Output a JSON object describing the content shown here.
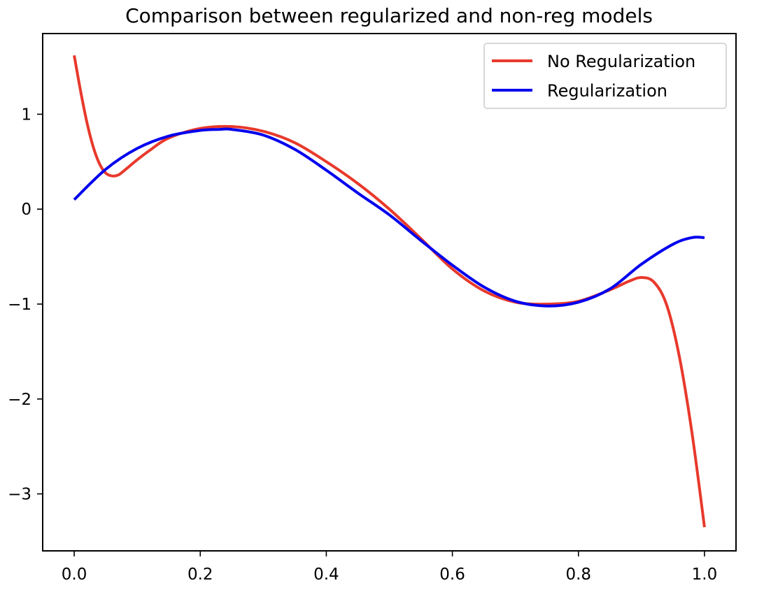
{
  "chart_data": {
    "type": "line",
    "title": "Comparison between regularized and non-reg models",
    "xlabel": "",
    "ylabel": "",
    "xlim": [
      -0.05,
      1.05
    ],
    "ylim": [
      -3.6,
      1.85
    ],
    "xticks": [
      0.0,
      0.2,
      0.4,
      0.6,
      0.8,
      1.0
    ],
    "xtick_labels": [
      "0.0",
      "0.2",
      "0.4",
      "0.6",
      "0.8",
      "1.0"
    ],
    "yticks": [
      1,
      0,
      -1,
      -2,
      -3
    ],
    "ytick_labels": [
      "1",
      "0",
      "−1",
      "−2",
      "−3"
    ],
    "grid": false,
    "legend_position": "upper right",
    "series": [
      {
        "name": "No Regularization",
        "color": "#e8392c",
        "x": [
          0.0,
          0.01,
          0.02,
          0.03,
          0.04,
          0.05,
          0.06,
          0.07,
          0.08,
          0.1,
          0.12,
          0.15,
          0.2,
          0.25,
          0.3,
          0.35,
          0.4,
          0.45,
          0.5,
          0.55,
          0.6,
          0.65,
          0.7,
          0.75,
          0.8,
          0.85,
          0.88,
          0.9,
          0.92,
          0.94,
          0.96,
          0.98,
          1.0
        ],
        "y": [
          1.62,
          1.25,
          0.92,
          0.66,
          0.48,
          0.38,
          0.35,
          0.36,
          0.41,
          0.52,
          0.62,
          0.75,
          0.85,
          0.87,
          0.82,
          0.7,
          0.5,
          0.27,
          0.0,
          -0.31,
          -0.63,
          -0.86,
          -0.98,
          -1.0,
          -0.97,
          -0.85,
          -0.76,
          -0.72,
          -0.77,
          -1.01,
          -1.55,
          -2.35,
          -3.35
        ]
      },
      {
        "name": "Regularization",
        "color": "#0000ee",
        "x": [
          0.0,
          0.05,
          0.1,
          0.15,
          0.2,
          0.23,
          0.25,
          0.3,
          0.35,
          0.4,
          0.45,
          0.5,
          0.55,
          0.6,
          0.65,
          0.7,
          0.75,
          0.8,
          0.85,
          0.9,
          0.95,
          0.98,
          1.0
        ],
        "y": [
          0.1,
          0.42,
          0.64,
          0.77,
          0.83,
          0.84,
          0.84,
          0.78,
          0.63,
          0.41,
          0.17,
          -0.06,
          -0.33,
          -0.59,
          -0.82,
          -0.97,
          -1.02,
          -0.98,
          -0.84,
          -0.58,
          -0.37,
          -0.3,
          -0.3
        ]
      }
    ]
  }
}
